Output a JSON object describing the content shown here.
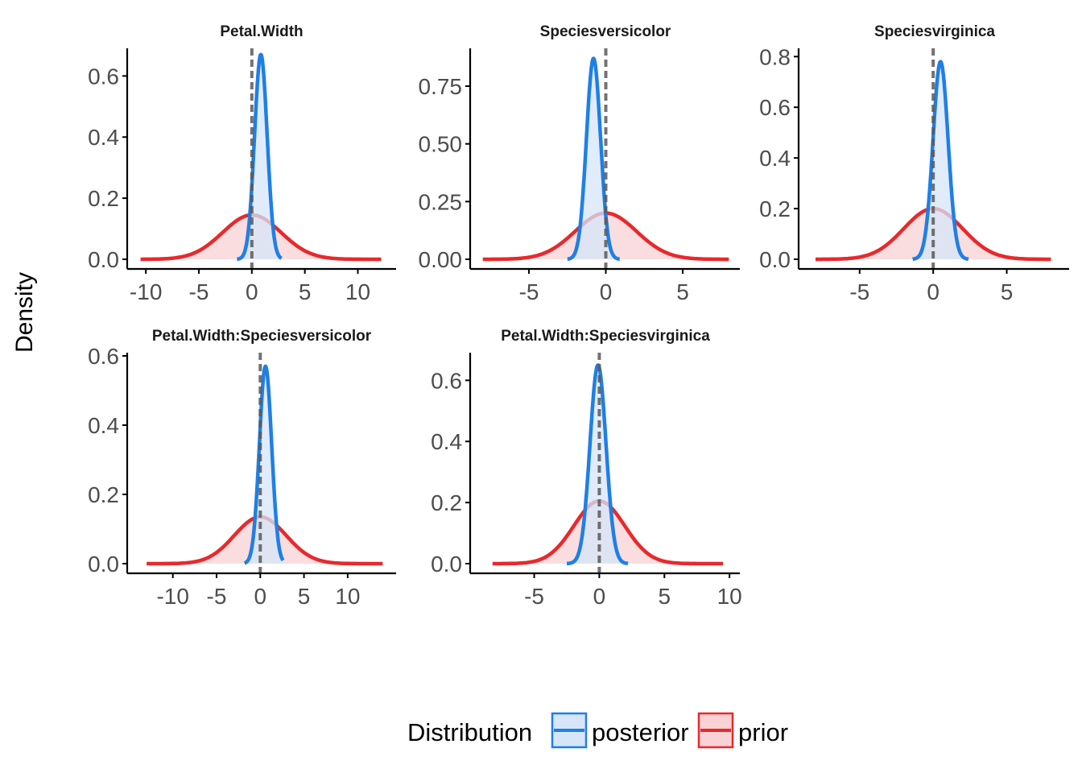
{
  "chart_data": {
    "type": "area",
    "y_axis_title": "Density",
    "legend": {
      "title": "Distribution",
      "position": "bottom",
      "entries": [
        {
          "label": "posterior",
          "line_color": "#1f7fe6",
          "fill_color": "#d6e6f8"
        },
        {
          "label": "prior",
          "line_color": "#e8292c",
          "fill_color": "#f8d2d4"
        }
      ]
    },
    "panels": [
      {
        "title": "Petal.Width",
        "xlim": [
          -11,
          13
        ],
        "ylim": [
          0,
          0.68
        ],
        "x_ticks": [
          -10,
          -5,
          0,
          5,
          10
        ],
        "x_tick_labels": [
          "-10",
          "-5",
          "0",
          "5",
          "10"
        ],
        "y_ticks": [
          0,
          0.2,
          0.4,
          0.6
        ],
        "y_tick_labels": [
          "0.0",
          "0.2",
          "0.4",
          "0.6"
        ],
        "reference_line_x": 0,
        "series": [
          {
            "name": "prior",
            "type": "density",
            "mean": 0.0,
            "peak": 0.145,
            "range": [
              -10.5,
              12.2
            ]
          },
          {
            "name": "posterior",
            "type": "density",
            "mean": 0.85,
            "peak": 0.67,
            "range": [
              -1.4,
              2.8
            ]
          }
        ]
      },
      {
        "title": "Speciesversicolor",
        "xlim": [
          -8.3,
          8.3
        ],
        "ylim": [
          0,
          0.9
        ],
        "x_ticks": [
          -5,
          0,
          5
        ],
        "x_tick_labels": [
          "-5",
          "0",
          "5"
        ],
        "y_ticks": [
          0,
          0.25,
          0.5,
          0.75
        ],
        "y_tick_labels": [
          "0.00",
          "0.25",
          "0.50",
          "0.75"
        ],
        "reference_line_x": 0,
        "series": [
          {
            "name": "prior",
            "type": "density",
            "mean": 0.0,
            "peak": 0.2,
            "range": [
              -8.0,
              8.0
            ]
          },
          {
            "name": "posterior",
            "type": "density",
            "mean": -0.8,
            "peak": 0.87,
            "range": [
              -2.5,
              0.9
            ]
          }
        ]
      },
      {
        "title": "Speciesvirginica",
        "xlim": [
          -8.6,
          8.8
        ],
        "ylim": [
          0,
          0.82
        ],
        "x_ticks": [
          -5,
          0,
          5
        ],
        "x_tick_labels": [
          "-5",
          "0",
          "5"
        ],
        "y_ticks": [
          0,
          0.2,
          0.4,
          0.6,
          0.8
        ],
        "y_tick_labels": [
          "0.0",
          "0.2",
          "0.4",
          "0.6",
          "0.8"
        ],
        "reference_line_x": 0,
        "series": [
          {
            "name": "prior",
            "type": "density",
            "mean": 0.0,
            "peak": 0.2,
            "range": [
              -8.0,
              8.0
            ]
          },
          {
            "name": "posterior",
            "type": "density",
            "mean": 0.5,
            "peak": 0.78,
            "range": [
              -1.4,
              2.4
            ]
          }
        ]
      },
      {
        "title": "Petal.Width:Speciesversicolor",
        "xlim": [
          -14.3,
          14.8
        ],
        "ylim": [
          0,
          0.6
        ],
        "x_ticks": [
          -10,
          -5,
          0,
          5,
          10
        ],
        "x_tick_labels": [
          "-10",
          "-5",
          "0",
          "5",
          "10"
        ],
        "y_ticks": [
          0,
          0.2,
          0.4,
          0.6
        ],
        "y_tick_labels": [
          "0.0",
          "0.2",
          "0.4",
          "0.6"
        ],
        "reference_line_x": 0,
        "series": [
          {
            "name": "prior",
            "type": "density",
            "mean": 0.0,
            "peak": 0.135,
            "range": [
              -13.0,
              14.0
            ]
          },
          {
            "name": "posterior",
            "type": "density",
            "mean": 0.6,
            "peak": 0.57,
            "range": [
              -1.8,
              2.6
            ]
          }
        ]
      },
      {
        "title": "Petal.Width:Speciesvirginica",
        "xlim": [
          -9.3,
          10.3
        ],
        "ylim": [
          0,
          0.68
        ],
        "x_ticks": [
          -5,
          0,
          5,
          10
        ],
        "x_tick_labels": [
          "-5",
          "0",
          "5",
          "10"
        ],
        "y_ticks": [
          0,
          0.2,
          0.4,
          0.6
        ],
        "y_tick_labels": [
          "0.0",
          "0.2",
          "0.4",
          "0.6"
        ],
        "reference_line_x": 0,
        "series": [
          {
            "name": "prior",
            "type": "density",
            "mean": 0.0,
            "peak": 0.205,
            "range": [
              -8.2,
              9.5
            ]
          },
          {
            "name": "posterior",
            "type": "density",
            "mean": -0.1,
            "peak": 0.65,
            "range": [
              -2.5,
              2.2
            ]
          }
        ]
      }
    ]
  }
}
